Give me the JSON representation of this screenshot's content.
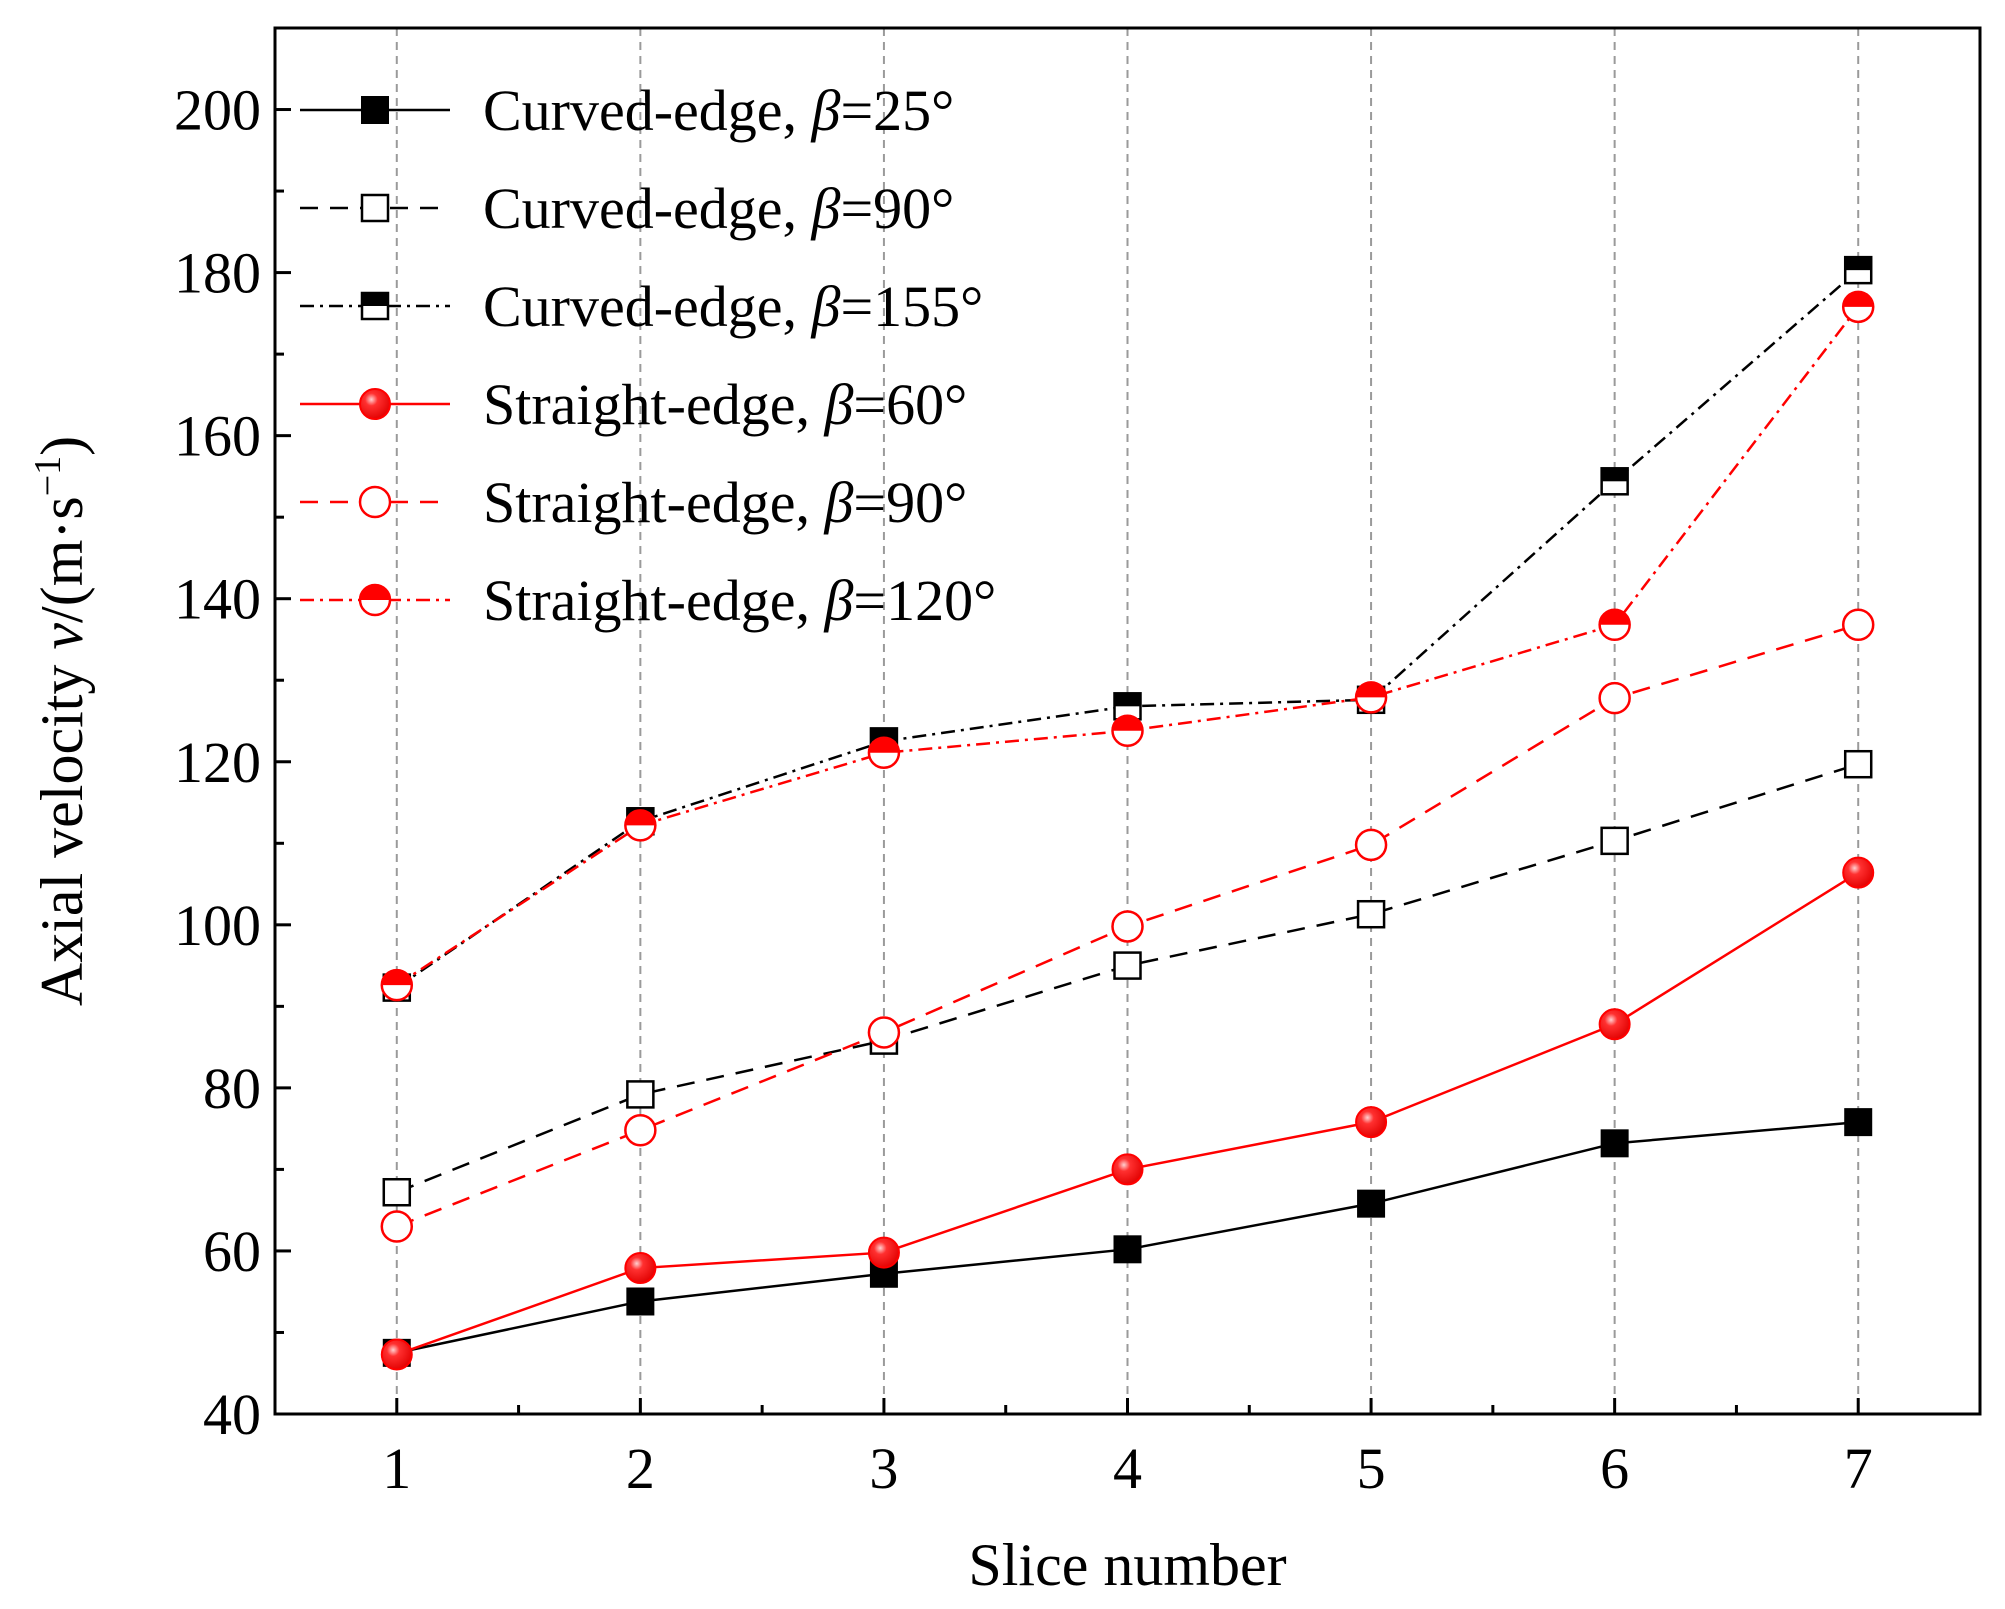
{
  "chart_data": {
    "type": "line",
    "title": "",
    "xlabel": "Slice number",
    "ylabel": {
      "prefix": "Axial velocity ",
      "var": "v",
      "unit_open": "/(m·s",
      "exp": "−1",
      "unit_close": ")"
    },
    "x": [
      1,
      2,
      3,
      4,
      5,
      6,
      7
    ],
    "xlim": [
      0.5,
      7.5
    ],
    "ylim": [
      40,
      210
    ],
    "x_ticks": [
      "1",
      "2",
      "3",
      "4",
      "5",
      "6",
      "7"
    ],
    "y_ticks": [
      "40",
      "60",
      "80",
      "100",
      "120",
      "140",
      "160",
      "180",
      "200"
    ],
    "grid": "vertical dashed at each slice",
    "legend_position": "top-left",
    "series": [
      {
        "name": "Curved-edge, ",
        "beta": "β",
        "suffix": "=25°",
        "color": "#000000",
        "dash": "solid",
        "marker": "square",
        "fill": "solid",
        "values": [
          47.5,
          53.8,
          57.2,
          60.2,
          65.8,
          73.2,
          75.8
        ]
      },
      {
        "name": "Curved-edge, ",
        "beta": "β",
        "suffix": "=90°",
        "color": "#000000",
        "dash": "dash",
        "marker": "square",
        "fill": "open",
        "values": [
          67.2,
          79.2,
          85.8,
          95.0,
          101.3,
          110.3,
          119.7
        ]
      },
      {
        "name": "Curved-edge, ",
        "beta": "β",
        "suffix": "=155°",
        "color": "#000000",
        "dash": "dashdot",
        "marker": "square",
        "fill": "half",
        "values": [
          92.3,
          112.7,
          122.5,
          126.8,
          127.6,
          154.4,
          180.3
        ]
      },
      {
        "name": "Straight-edge, ",
        "beta": "β",
        "suffix": "=60°",
        "color": "#ff0000",
        "dash": "solid",
        "marker": "circle",
        "fill": "solid",
        "values": [
          47.3,
          57.9,
          59.8,
          70.0,
          75.8,
          87.8,
          106.4
        ]
      },
      {
        "name": "Straight-edge, ",
        "beta": "β",
        "suffix": "=90°",
        "color": "#ff0000",
        "dash": "dash",
        "marker": "circle",
        "fill": "open",
        "values": [
          63.0,
          74.8,
          86.8,
          99.8,
          109.8,
          127.8,
          136.8
        ]
      },
      {
        "name": "Straight-edge, ",
        "beta": "β",
        "suffix": "=120°",
        "color": "#ff0000",
        "dash": "dashdot",
        "marker": "circle",
        "fill": "half",
        "values": [
          92.6,
          112.2,
          121.1,
          123.8,
          127.9,
          136.8,
          175.8
        ]
      }
    ]
  }
}
